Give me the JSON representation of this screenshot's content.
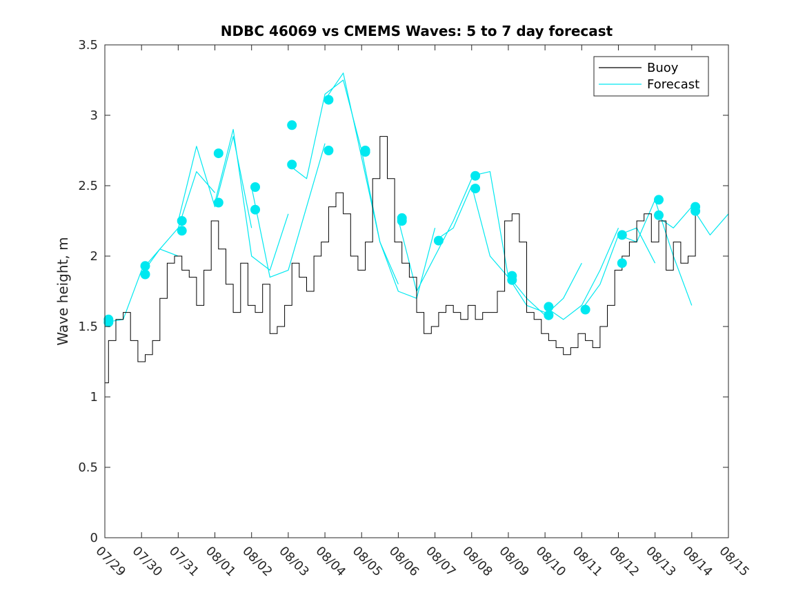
{
  "chart_data": {
    "type": "line",
    "title": "NDBC 46069 vs CMEMS Waves: 5 to 7 day forecast",
    "ylabel": "Wave height, m",
    "xlabel": "",
    "xlim": [
      "07/29",
      "08/15"
    ],
    "ylim": [
      0,
      3.5
    ],
    "x_ticks": [
      "07/29",
      "07/30",
      "07/31",
      "08/01",
      "08/02",
      "08/03",
      "08/04",
      "08/05",
      "08/06",
      "08/07",
      "08/08",
      "08/09",
      "08/10",
      "08/11",
      "08/12",
      "08/13",
      "08/14",
      "08/15"
    ],
    "y_ticks": [
      "0",
      "0.5",
      "1",
      "1.5",
      "2",
      "2.5",
      "3",
      "3.5"
    ],
    "grid": false,
    "legend_position": "top-right",
    "legend": [
      "Buoy",
      "Forecast"
    ],
    "colors": {
      "buoy": "#000000",
      "forecast": "#00e8f0"
    },
    "series": [
      {
        "name": "Buoy",
        "x_days": [
          0.0,
          0.2,
          0.4,
          0.6,
          0.8,
          1.0,
          1.2,
          1.4,
          1.6,
          1.8,
          2.0,
          2.2,
          2.4,
          2.6,
          2.8,
          3.0,
          3.2,
          3.4,
          3.6,
          3.8,
          4.0,
          4.2,
          4.4,
          4.6,
          4.8,
          5.0,
          5.2,
          5.4,
          5.6,
          5.8,
          6.0,
          6.2,
          6.4,
          6.6,
          6.8,
          7.0,
          7.2,
          7.4,
          7.6,
          7.8,
          8.0,
          8.2,
          8.4,
          8.6,
          8.8,
          9.0,
          9.2,
          9.4,
          9.6,
          9.8,
          10.0,
          10.2,
          10.4,
          10.6,
          10.8,
          11.0,
          11.2,
          11.4,
          11.6,
          11.8,
          12.0,
          12.2,
          12.4,
          12.6,
          12.8,
          13.0,
          13.2,
          13.4,
          13.6,
          13.8,
          14.0,
          14.2,
          14.4,
          14.6,
          14.8,
          15.0,
          15.2,
          15.4,
          15.6,
          15.8,
          16.0,
          16.2
        ],
        "values": [
          1.1,
          1.4,
          1.55,
          1.6,
          1.4,
          1.25,
          1.3,
          1.4,
          1.7,
          1.95,
          2.0,
          1.9,
          1.85,
          1.65,
          1.9,
          2.25,
          2.05,
          1.8,
          1.6,
          1.95,
          1.65,
          1.6,
          1.8,
          1.45,
          1.5,
          1.65,
          1.95,
          1.85,
          1.75,
          2.0,
          2.1,
          2.35,
          2.45,
          2.3,
          2.0,
          1.9,
          2.1,
          2.55,
          2.85,
          2.55,
          2.1,
          1.95,
          1.85,
          1.6,
          1.45,
          1.5,
          1.6,
          1.65,
          1.6,
          1.55,
          1.65,
          1.55,
          1.6,
          1.6,
          1.75,
          2.25,
          2.3,
          2.1,
          1.6,
          1.55,
          1.45,
          1.4,
          1.35,
          1.3,
          1.35,
          1.45,
          1.4,
          1.35,
          1.5,
          1.65,
          1.9,
          2.0,
          2.1,
          2.25,
          2.3,
          2.1,
          2.25,
          1.9,
          2.1,
          1.95,
          2.0,
          2.35
        ]
      },
      {
        "name": "Forecast",
        "runs": [
          {
            "x_days": [
              0.0,
              0.5,
              1.0,
              1.5,
              2.0
            ],
            "values": [
              1.53,
              1.55,
              1.9,
              2.05,
              2.0
            ]
          },
          {
            "x_days": [
              1.0,
              1.5,
              2.0,
              2.5,
              3.0
            ],
            "values": [
              1.87,
              2.05,
              2.2,
              2.6,
              2.45
            ]
          },
          {
            "x_days": [
              2.0,
              2.5,
              3.0,
              3.5,
              4.0
            ],
            "values": [
              2.25,
              2.78,
              2.35,
              2.85,
              2.2
            ]
          },
          {
            "x_days": [
              3.0,
              3.5,
              4.0,
              4.5,
              5.0
            ],
            "values": [
              2.38,
              2.9,
              2.0,
              1.9,
              2.3
            ]
          },
          {
            "x_days": [
              4.0,
              4.5,
              5.0,
              5.5,
              6.0
            ],
            "values": [
              2.49,
              1.85,
              1.9,
              2.35,
              2.8
            ]
          },
          {
            "x_days": [
              5.0,
              5.5,
              6.0,
              6.5,
              7.0
            ],
            "values": [
              2.65,
              2.55,
              3.15,
              3.25,
              2.75
            ]
          },
          {
            "x_days": [
              6.0,
              6.5,
              7.0,
              7.5,
              8.0
            ],
            "values": [
              3.11,
              3.3,
              2.7,
              2.1,
              1.8
            ]
          },
          {
            "x_days": [
              7.0,
              7.5,
              8.0,
              8.5,
              9.0
            ],
            "values": [
              2.75,
              2.1,
              1.75,
              1.7,
              2.2
            ]
          },
          {
            "x_days": [
              8.0,
              8.5,
              9.0,
              9.5,
              10.0
            ],
            "values": [
              2.26,
              1.75,
              2.0,
              2.25,
              2.55
            ]
          },
          {
            "x_days": [
              9.0,
              9.5,
              10.0,
              10.5,
              11.0
            ],
            "values": [
              2.11,
              2.2,
              2.5,
              2.0,
              1.85
            ]
          },
          {
            "x_days": [
              10.0,
              10.5,
              11.0,
              11.5,
              12.0
            ],
            "values": [
              2.57,
              2.6,
              1.85,
              1.65,
              1.6
            ]
          },
          {
            "x_days": [
              11.0,
              11.5,
              12.0,
              12.5,
              13.0
            ],
            "values": [
              1.86,
              1.7,
              1.58,
              1.7,
              1.95
            ]
          },
          {
            "x_days": [
              12.0,
              12.5,
              13.0,
              13.5,
              14.0
            ],
            "values": [
              1.64,
              1.55,
              1.65,
              1.9,
              2.2
            ]
          },
          {
            "x_days": [
              13.0,
              13.5,
              14.0,
              14.5,
              15.0
            ],
            "values": [
              1.62,
              1.8,
              2.15,
              2.2,
              1.95
            ]
          },
          {
            "x_days": [
              14.0,
              14.5,
              15.0,
              15.5,
              16.0
            ],
            "values": [
              2.15,
              2.1,
              2.4,
              2.0,
              1.65
            ]
          },
          {
            "x_days": [
              15.0,
              15.5,
              16.0,
              16.5,
              17.0
            ],
            "values": [
              2.29,
              2.2,
              2.35,
              2.15,
              2.3
            ]
          }
        ],
        "markers": [
          {
            "x_day": 0.1,
            "value": 1.53
          },
          {
            "x_day": 0.1,
            "value": 1.55
          },
          {
            "x_day": 1.1,
            "value": 1.87
          },
          {
            "x_day": 1.1,
            "value": 1.93
          },
          {
            "x_day": 2.1,
            "value": 2.18
          },
          {
            "x_day": 2.1,
            "value": 2.25
          },
          {
            "x_day": 3.1,
            "value": 2.38
          },
          {
            "x_day": 3.1,
            "value": 2.73
          },
          {
            "x_day": 4.1,
            "value": 2.33
          },
          {
            "x_day": 4.1,
            "value": 2.49
          },
          {
            "x_day": 5.1,
            "value": 2.65
          },
          {
            "x_day": 5.1,
            "value": 2.93
          },
          {
            "x_day": 6.1,
            "value": 2.75
          },
          {
            "x_day": 6.1,
            "value": 3.11
          },
          {
            "x_day": 7.1,
            "value": 2.74
          },
          {
            "x_day": 7.1,
            "value": 2.75
          },
          {
            "x_day": 8.1,
            "value": 2.25
          },
          {
            "x_day": 8.1,
            "value": 2.27
          },
          {
            "x_day": 9.1,
            "value": 2.11
          },
          {
            "x_day": 10.1,
            "value": 2.48
          },
          {
            "x_day": 10.1,
            "value": 2.57
          },
          {
            "x_day": 11.1,
            "value": 1.83
          },
          {
            "x_day": 11.1,
            "value": 1.86
          },
          {
            "x_day": 12.1,
            "value": 1.58
          },
          {
            "x_day": 12.1,
            "value": 1.64
          },
          {
            "x_day": 13.1,
            "value": 1.62
          },
          {
            "x_day": 14.1,
            "value": 1.95
          },
          {
            "x_day": 14.1,
            "value": 2.15
          },
          {
            "x_day": 15.1,
            "value": 2.29
          },
          {
            "x_day": 15.1,
            "value": 2.4
          },
          {
            "x_day": 16.1,
            "value": 2.32
          },
          {
            "x_day": 16.1,
            "value": 2.35
          }
        ]
      }
    ]
  }
}
